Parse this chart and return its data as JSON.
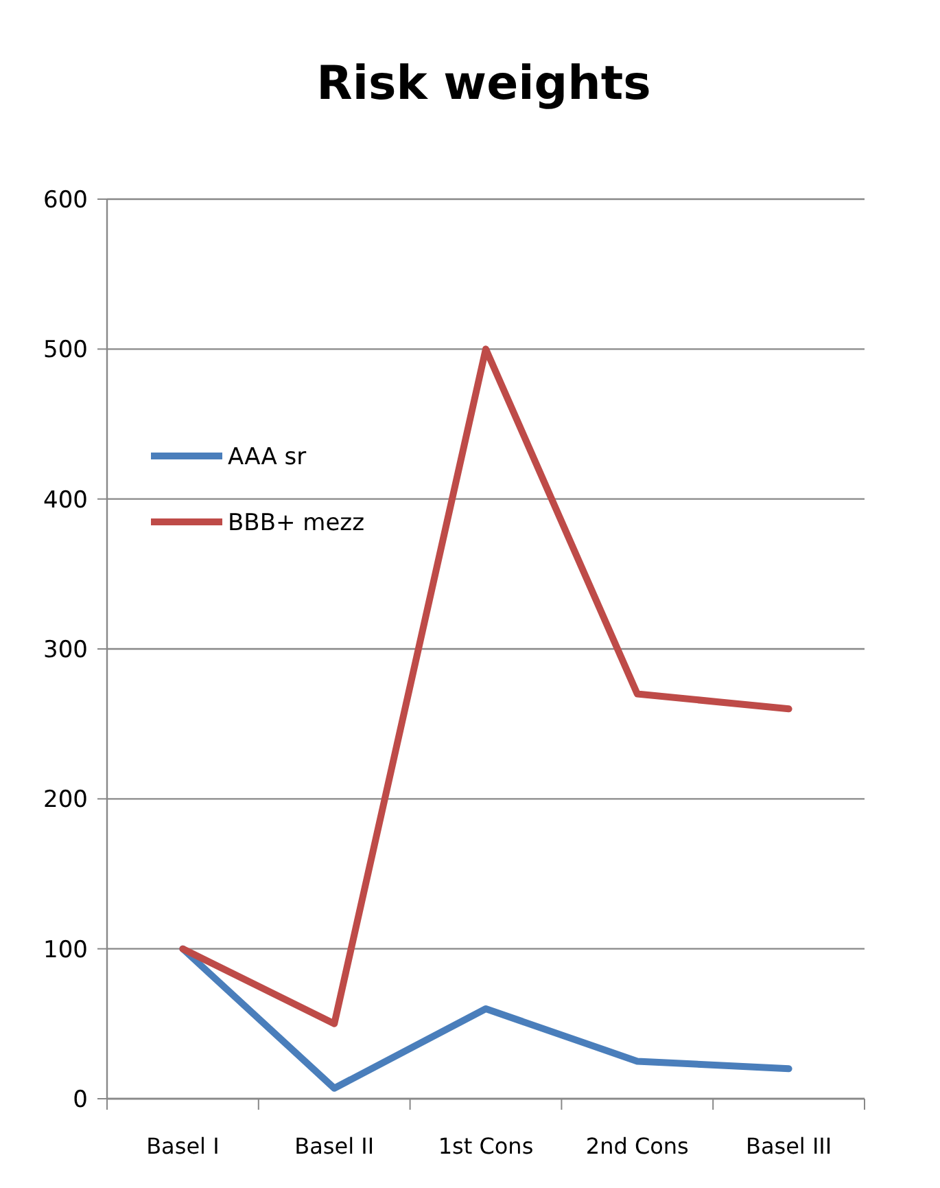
{
  "chart_data": {
    "type": "line",
    "title": "Risk weights",
    "categories": [
      "Basel I",
      "Basel II",
      "1st Cons",
      "2nd Cons",
      "Basel III"
    ],
    "series": [
      {
        "name": "AAA sr",
        "color": "#4a7ebb",
        "values": [
          100,
          7,
          60,
          25,
          20
        ]
      },
      {
        "name": "BBB+ mezz",
        "color": "#be4b48",
        "values": [
          100,
          50,
          500,
          270,
          260
        ]
      }
    ],
    "ylim": [
      0,
      600
    ],
    "yticks": [
      0,
      100,
      200,
      300,
      400,
      500,
      600
    ],
    "grid": "y",
    "legend": "left",
    "marker": "none"
  }
}
